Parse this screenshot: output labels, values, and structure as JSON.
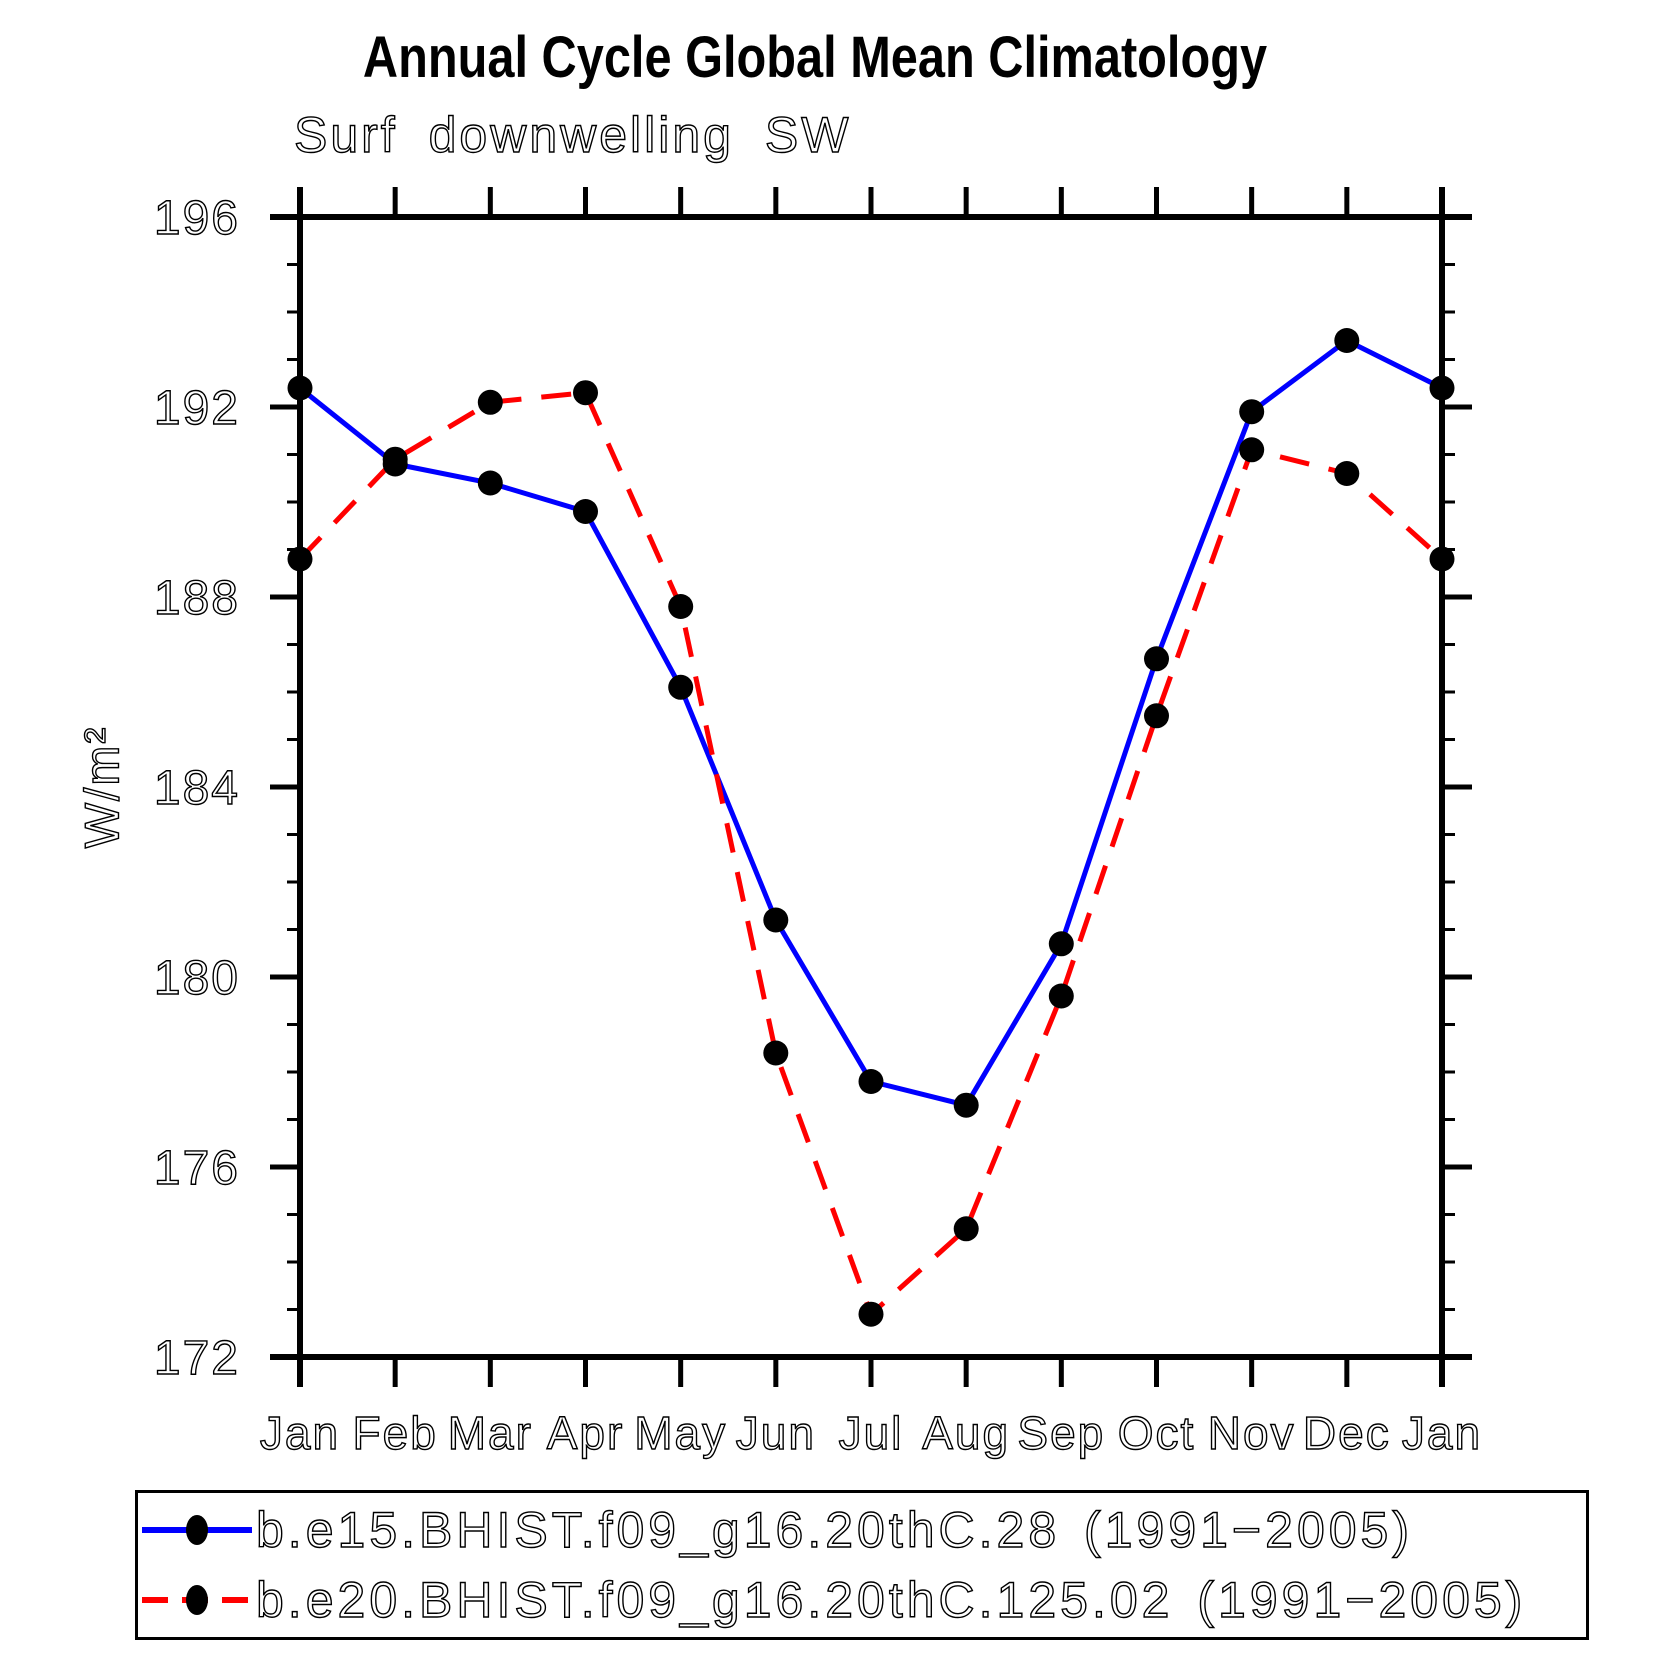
{
  "chart_data": {
    "type": "line",
    "title": "Annual Cycle Global Mean Climatology",
    "subtitle": "Surf downwelling SW",
    "xlabel": "",
    "ylabel": "W/m²",
    "categories": [
      "Jan",
      "Feb",
      "Mar",
      "Apr",
      "May",
      "Jun",
      "Jul",
      "Aug",
      "Sep",
      "Oct",
      "Nov",
      "Dec",
      "Jan"
    ],
    "ylim": [
      172,
      196
    ],
    "y_major_ticks": [
      172,
      176,
      180,
      184,
      188,
      192,
      196
    ],
    "y_minor_step": 1,
    "grid": false,
    "legend_position": "bottom box",
    "axis_color": "#000000",
    "marker_color": "#000000",
    "series": [
      {
        "name": "b.e15.BHIST.f09_g16.20thC.28 (1991−2005)",
        "color": "#0000ff",
        "style": "solid",
        "marker": "filled-circle",
        "values": [
          192.4,
          190.8,
          190.4,
          189.8,
          186.1,
          181.2,
          177.8,
          177.3,
          180.7,
          186.7,
          191.9,
          193.4,
          192.4
        ]
      },
      {
        "name": "b.e20.BHIST.f09_g16.20thC.125.02 (1991−2005)",
        "color": "#ff0000",
        "style": "dashed",
        "marker": "filled-circle",
        "values": [
          188.8,
          190.9,
          192.1,
          192.3,
          187.8,
          178.4,
          172.9,
          174.7,
          179.6,
          185.5,
          191.1,
          190.6,
          188.8
        ]
      }
    ]
  }
}
